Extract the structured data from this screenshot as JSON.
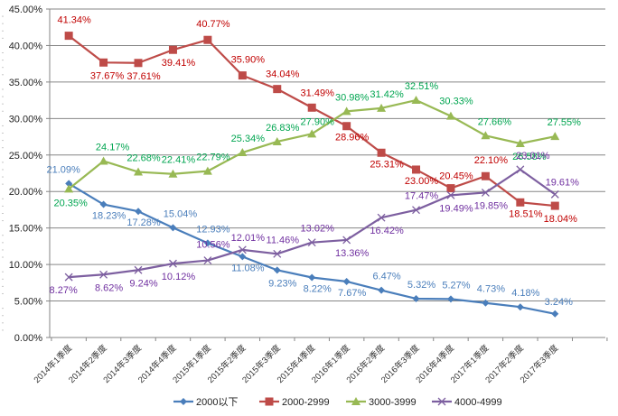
{
  "chart_data": {
    "type": "line",
    "title": "",
    "xlabel": "",
    "ylabel": "",
    "ylim": [
      0,
      45
    ],
    "y_tick_step": 5,
    "y_tick_labels": [
      "0.00%",
      "5.00%",
      "10.00%",
      "15.00%",
      "20.00%",
      "25.00%",
      "30.00%",
      "35.00%",
      "40.00%",
      "45.00%"
    ],
    "grid": "horizontal",
    "legend_position": "bottom",
    "categories": [
      "2014年1季度",
      "2014年2季度",
      "2014年3季度",
      "2014年4季度",
      "2015年1季度",
      "2015年2季度",
      "2015年3季度",
      "2015年4季度",
      "2016年1季度",
      "2016年2季度",
      "2016年3季度",
      "2016年4季度",
      "2017年1季度",
      "2017年2季度",
      "2017年3季度"
    ],
    "series": [
      {
        "name": "2000以下",
        "color": "#4a7ebb",
        "label_color": "#4a7ebb",
        "marker": "diamond",
        "values": [
          21.09,
          18.23,
          17.28,
          15.04,
          12.93,
          11.08,
          9.23,
          8.22,
          7.67,
          6.47,
          5.32,
          5.27,
          4.73,
          4.18,
          3.24
        ],
        "labels": [
          "21.09%",
          "18.23%",
          "17.28%",
          "15.04%",
          "12.93%",
          "11.08%",
          "9.23%",
          "8.22%",
          "7.67%",
          "6.47%",
          "5.32%",
          "5.27%",
          "4.73%",
          "4.18%",
          "3.24%"
        ]
      },
      {
        "name": "2000-2999",
        "color": "#be4b48",
        "label_color": "#c00000",
        "marker": "square",
        "values": [
          41.34,
          37.67,
          37.61,
          39.41,
          40.77,
          35.9,
          34.04,
          31.49,
          28.96,
          25.31,
          23.0,
          20.45,
          22.1,
          18.51,
          18.04
        ],
        "labels": [
          "41.34%",
          "37.67%",
          "37.61%",
          "39.41%",
          "40.77%",
          "35.90%",
          "34.04%",
          "31.49%",
          "28.96%",
          "25.31%",
          "23.00%",
          "20.45%",
          "22.10%",
          "18.51%",
          "18.04%"
        ]
      },
      {
        "name": "3000-3999",
        "color": "#98b954",
        "label_color": "#00a550",
        "marker": "triangle",
        "values": [
          20.35,
          24.17,
          22.68,
          22.41,
          22.79,
          25.34,
          26.83,
          27.9,
          30.98,
          31.42,
          32.51,
          30.33,
          27.66,
          26.58,
          27.55
        ],
        "labels": [
          "20.35%",
          "24.17%",
          "22.68%",
          "22.41%",
          "22.79%",
          "25.34%",
          "26.83%",
          "27.90%",
          "30.98%",
          "31.42%",
          "32.51%",
          "30.33%",
          "27.66%",
          "26.58%",
          "27.55%"
        ]
      },
      {
        "name": "4000-4999",
        "color": "#7d5fa0",
        "label_color": "#7030a0",
        "marker": "x",
        "values": [
          8.27,
          8.62,
          9.24,
          10.12,
          10.56,
          12.01,
          11.46,
          13.02,
          13.36,
          16.42,
          17.47,
          19.49,
          19.85,
          23.01,
          19.61
        ],
        "labels": [
          "8.27%",
          "8.62%",
          "9.24%",
          "10.12%",
          "10.56%",
          "12.01%",
          "11.46%",
          "13.02%",
          "13.36%",
          "16.42%",
          "17.47%",
          "19.49%",
          "19.85%",
          "23.01%",
          "19.61%"
        ]
      }
    ]
  }
}
